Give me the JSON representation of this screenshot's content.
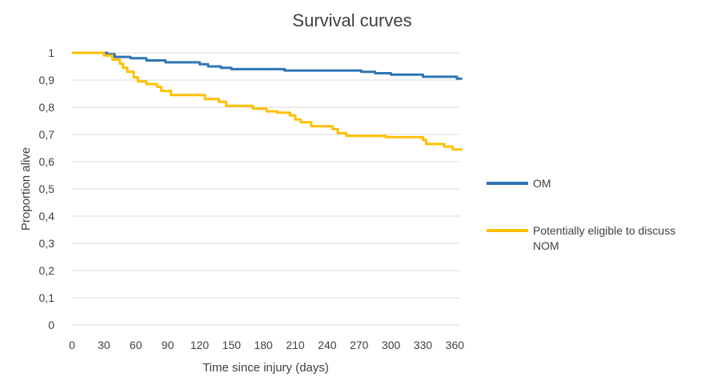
{
  "chart_data": {
    "type": "line",
    "title": "Survival curves",
    "xlabel": "Time since injury (days)",
    "ylabel": "Proportion alive",
    "xlim": [
      0,
      365
    ],
    "ylim": [
      0,
      1
    ],
    "grid": true,
    "legend_position": "right",
    "x_ticks": [
      "0",
      "30",
      "60",
      "90",
      "120",
      "150",
      "180",
      "210",
      "240",
      "270",
      "300",
      "330",
      "360"
    ],
    "x_tick_values": [
      0,
      30,
      60,
      90,
      120,
      150,
      180,
      210,
      240,
      270,
      300,
      330,
      360
    ],
    "y_ticks": [
      "0",
      "0,1",
      "0,2",
      "0,3",
      "0,4",
      "0,5",
      "0,6",
      "0,7",
      "0,8",
      "0,9",
      "1"
    ],
    "y_tick_values": [
      0,
      0.1,
      0.2,
      0.3,
      0.4,
      0.5,
      0.6,
      0.7,
      0.8,
      0.9,
      1
    ],
    "series": [
      {
        "name": "OM",
        "color": "#2e75b6",
        "points": [
          [
            0,
            1.0
          ],
          [
            33,
            1.0
          ],
          [
            33,
            0.995
          ],
          [
            40,
            0.995
          ],
          [
            40,
            0.985
          ],
          [
            55,
            0.985
          ],
          [
            55,
            0.98
          ],
          [
            70,
            0.98
          ],
          [
            70,
            0.972
          ],
          [
            88,
            0.972
          ],
          [
            88,
            0.965
          ],
          [
            120,
            0.965
          ],
          [
            120,
            0.958
          ],
          [
            128,
            0.958
          ],
          [
            128,
            0.95
          ],
          [
            140,
            0.95
          ],
          [
            140,
            0.945
          ],
          [
            150,
            0.945
          ],
          [
            150,
            0.94
          ],
          [
            200,
            0.94
          ],
          [
            200,
            0.935
          ],
          [
            272,
            0.935
          ],
          [
            272,
            0.93
          ],
          [
            285,
            0.93
          ],
          [
            285,
            0.925
          ],
          [
            300,
            0.925
          ],
          [
            300,
            0.92
          ],
          [
            330,
            0.92
          ],
          [
            330,
            0.912
          ],
          [
            362,
            0.912
          ],
          [
            362,
            0.905
          ],
          [
            367,
            0.905
          ]
        ]
      },
      {
        "name": "Potentially eligible to discuss NOM",
        "color": "#ffc000",
        "points": [
          [
            0,
            1.0
          ],
          [
            30,
            1.0
          ],
          [
            30,
            0.99
          ],
          [
            38,
            0.99
          ],
          [
            38,
            0.975
          ],
          [
            45,
            0.975
          ],
          [
            45,
            0.96
          ],
          [
            48,
            0.96
          ],
          [
            48,
            0.945
          ],
          [
            52,
            0.945
          ],
          [
            52,
            0.93
          ],
          [
            58,
            0.93
          ],
          [
            58,
            0.91
          ],
          [
            62,
            0.91
          ],
          [
            62,
            0.895
          ],
          [
            70,
            0.895
          ],
          [
            70,
            0.885
          ],
          [
            80,
            0.885
          ],
          [
            80,
            0.875
          ],
          [
            84,
            0.875
          ],
          [
            84,
            0.86
          ],
          [
            93,
            0.86
          ],
          [
            93,
            0.845
          ],
          [
            125,
            0.845
          ],
          [
            125,
            0.83
          ],
          [
            138,
            0.83
          ],
          [
            138,
            0.82
          ],
          [
            145,
            0.82
          ],
          [
            145,
            0.805
          ],
          [
            170,
            0.805
          ],
          [
            170,
            0.795
          ],
          [
            183,
            0.795
          ],
          [
            183,
            0.785
          ],
          [
            193,
            0.785
          ],
          [
            193,
            0.78
          ],
          [
            205,
            0.78
          ],
          [
            205,
            0.77
          ],
          [
            210,
            0.77
          ],
          [
            210,
            0.755
          ],
          [
            215,
            0.755
          ],
          [
            215,
            0.745
          ],
          [
            225,
            0.745
          ],
          [
            225,
            0.73
          ],
          [
            245,
            0.73
          ],
          [
            245,
            0.72
          ],
          [
            250,
            0.72
          ],
          [
            250,
            0.705
          ],
          [
            258,
            0.705
          ],
          [
            258,
            0.695
          ],
          [
            295,
            0.695
          ],
          [
            295,
            0.69
          ],
          [
            330,
            0.69
          ],
          [
            330,
            0.68
          ],
          [
            333,
            0.68
          ],
          [
            333,
            0.665
          ],
          [
            350,
            0.665
          ],
          [
            350,
            0.655
          ],
          [
            358,
            0.655
          ],
          [
            358,
            0.645
          ],
          [
            367,
            0.645
          ]
        ]
      }
    ],
    "legend": [
      {
        "lines": [
          "OM"
        ],
        "color": "#2e75b6"
      },
      {
        "lines": [
          "Potentially eligible to discuss",
          "NOM"
        ],
        "color": "#ffc000"
      }
    ]
  }
}
